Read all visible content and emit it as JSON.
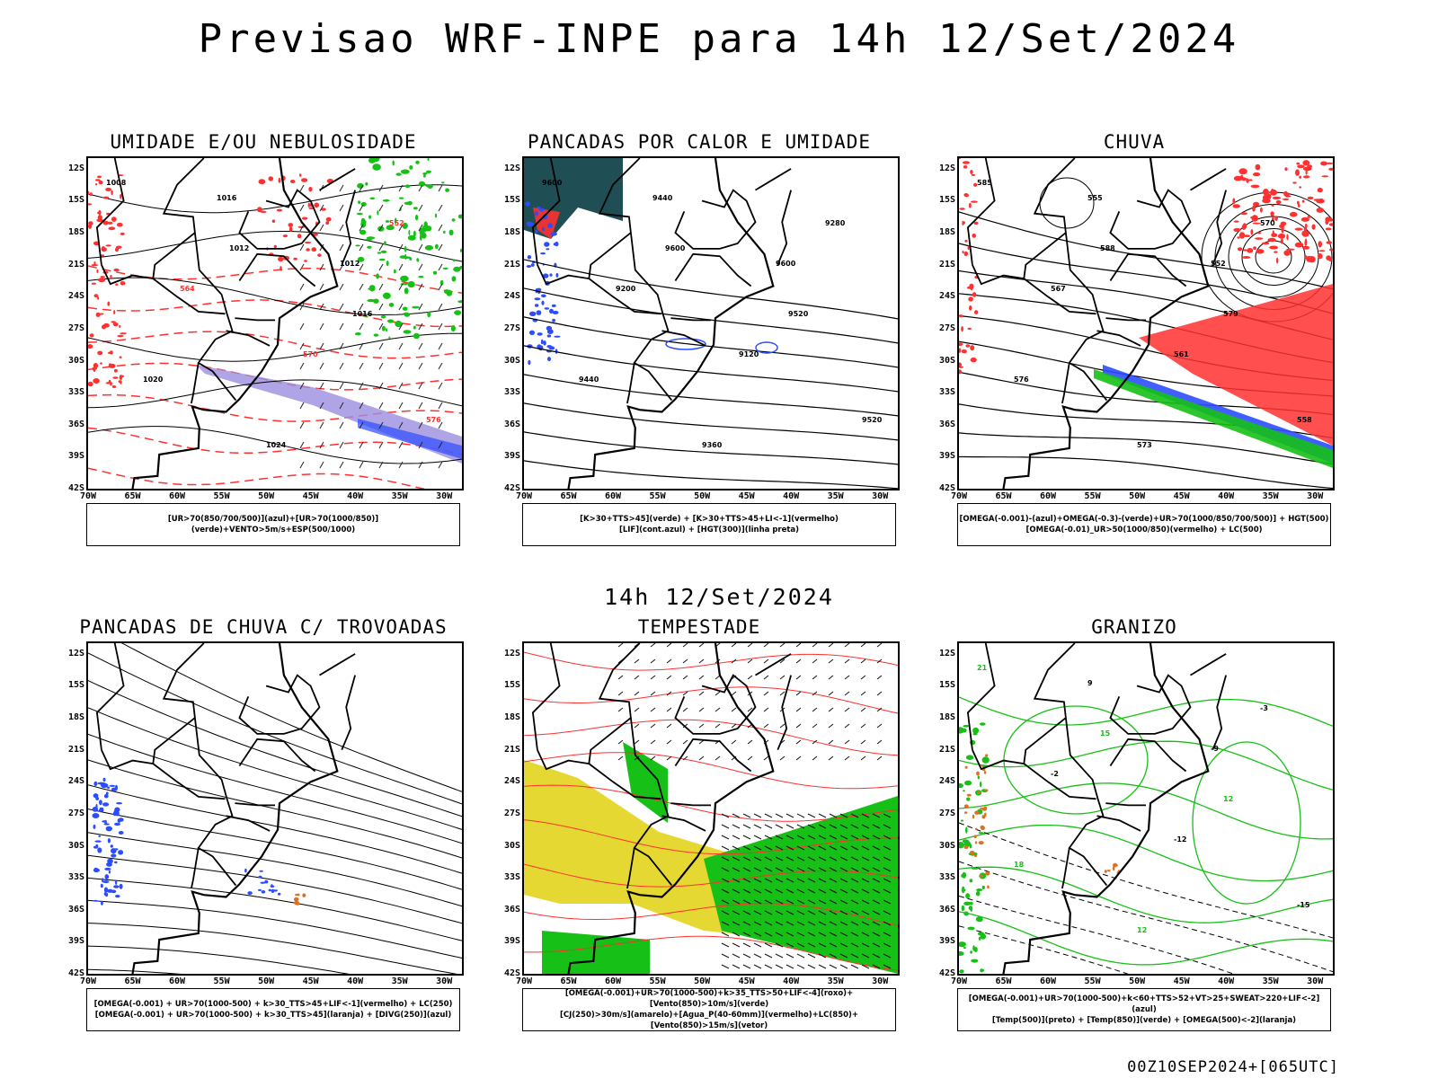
{
  "header": {
    "title": "Previsao WRF-INPE  para 14h 12/Set/2024"
  },
  "middle": {
    "title": "14h 12/Set/2024"
  },
  "footer": {
    "run": "00Z10SEP2024+[065UTC]"
  },
  "axes": {
    "lat_labels": [
      "12S",
      "15S",
      "18S",
      "21S",
      "24S",
      "27S",
      "30S",
      "33S",
      "36S",
      "39S",
      "42S"
    ],
    "lon_labels": [
      "70W",
      "65W",
      "60W",
      "55W",
      "50W",
      "45W",
      "40W",
      "35W",
      "30W"
    ]
  },
  "colors": {
    "red": "#ff3030",
    "green": "#16c016",
    "blue": "#2c4cff",
    "yellow": "#e6d832",
    "orange": "#e07020",
    "teal": "#1f4f55",
    "lavender": "#9b8fe0"
  },
  "panels": [
    {
      "title": "UMIDADE E/OU NEBULOSIDADE",
      "legend": [
        "[UR>70(850/700/500)](azul)+[UR>70(1000/850)](verde)+VENTO>5m/s+ESP(500/1000)"
      ],
      "contour_values": [
        "1008",
        "1012",
        "1016",
        "1020",
        "1024",
        "552",
        "564",
        "570",
        "576",
        "1016",
        "1012"
      ]
    },
    {
      "title": "PANCADAS POR CALOR E UMIDADE",
      "legend": [
        "[K>30+TTS>45](verde) + [K>30+TTS>45+LI<-1](vermelho)",
        "[LIF](cont.azul) + [HGT(300)](linha preta)"
      ],
      "contour_values": [
        "9600",
        "9600",
        "9520",
        "9440",
        "9360",
        "9280",
        "9200",
        "9120",
        "9520",
        "9440",
        "9600"
      ]
    },
    {
      "title": "CHUVA",
      "legend": [
        "[OMEGA(-0.001)-(azul)+OMEGA(-0.3)-(verde)+UR>70(1000/850/700/500)] + HGT(500)",
        "[OMEGA(-0.01)_UR>50(1000/850)(vermelho) + LC(500)"
      ],
      "contour_values": [
        "585",
        "588",
        "579",
        "576",
        "573",
        "570",
        "567",
        "561",
        "558",
        "555",
        "552"
      ]
    },
    {
      "title": "PANCADAS DE CHUVA C/ TROVOADAS",
      "legend": [
        "[OMEGA(-0.001) + UR>70(1000-500) + k>30_TTS>45+LIF<-1](vermelho) + LC(250)",
        "[OMEGA(-0.001) + UR>70(1000-500) + k>30_TTS>45](laranja) + [DIVG(250)](azul)"
      ],
      "contour_values": []
    },
    {
      "title": "TEMPESTADE",
      "legend": [
        "[OMEGA(-0.001)+UR>70(1000-500)+k>35_TTS>50+LIF<-4](roxo)+[Vento(850)>10m/s](verde)",
        "[CJ(250)>30m/s](amarelo)+[Agua_P(40-60mm)](vermelho)+LC(850)+[Vento(850)>15m/s](vetor)"
      ],
      "contour_values": []
    },
    {
      "title": "GRANIZO",
      "legend": [
        "[OMEGA(-0.001)+UR>70(1000-500)+k<60+TTS>52+VT>25+SWEAT>220+LIF<-2](azul)",
        "[Temp(500)](preto) + [Temp(850)](verde) + [OMEGA(500)<-2](laranja)"
      ],
      "contour_values": [
        "21",
        "15",
        "12",
        "18",
        "12",
        "-3",
        "-2",
        "-12",
        "-15",
        "9",
        "-9"
      ]
    }
  ]
}
